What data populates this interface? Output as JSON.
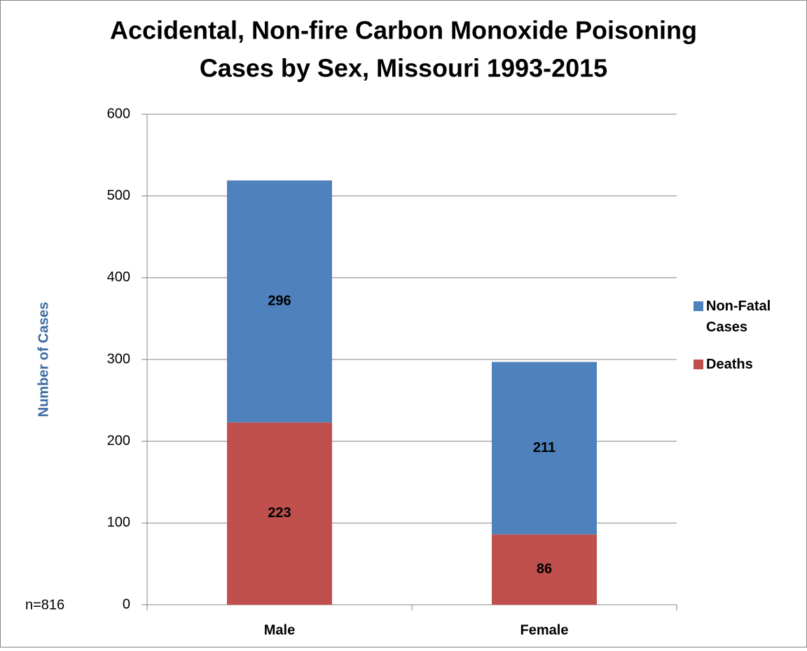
{
  "chart_data": {
    "type": "stacked_bar",
    "title": [
      "Accidental, Non-fire Carbon Monoxide Poisoning",
      "Cases by Sex, Missouri 1993-2015"
    ],
    "ylabel": "Number of Cases",
    "annotation": "n=816",
    "categories": [
      "Male",
      "Female"
    ],
    "series": [
      {
        "name": "Deaths",
        "color": "#c0504d",
        "values": [
          223,
          86
        ]
      },
      {
        "name": "Non-Fatal Cases",
        "color": "#4f81bd",
        "values": [
          296,
          211
        ]
      }
    ],
    "ylim": [
      0,
      600
    ],
    "yticks": [
      0,
      100,
      200,
      300,
      400,
      500,
      600
    ],
    "grid": true,
    "legend": "right"
  }
}
